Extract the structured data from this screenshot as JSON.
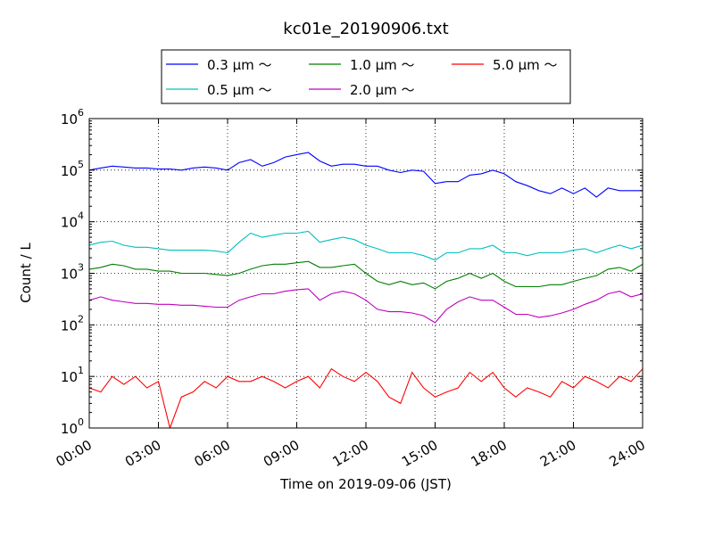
{
  "chart_data": {
    "type": "line",
    "title": "kc01e_20190906.txt",
    "xlabel": "Time on 2019-09-06 (JST)",
    "ylabel": "Count / L",
    "y_scale": "log",
    "ylim": [
      1,
      1000000
    ],
    "xlim": [
      "00:00",
      "24:00"
    ],
    "x_ticks": [
      "00:00",
      "03:00",
      "06:00",
      "09:00",
      "12:00",
      "15:00",
      "18:00",
      "21:00",
      "24:00"
    ],
    "y_ticks": [
      {
        "base": "10",
        "exp": "0",
        "value": 1
      },
      {
        "base": "10",
        "exp": "1",
        "value": 10
      },
      {
        "base": "10",
        "exp": "2",
        "value": 100
      },
      {
        "base": "10",
        "exp": "3",
        "value": 1000
      },
      {
        "base": "10",
        "exp": "4",
        "value": 10000
      },
      {
        "base": "10",
        "exp": "5",
        "value": 100000
      },
      {
        "base": "10",
        "exp": "6",
        "value": 1000000
      }
    ],
    "grid": true,
    "legend_position": "top-center",
    "x": [
      "00:00",
      "00:30",
      "01:00",
      "01:30",
      "02:00",
      "02:30",
      "03:00",
      "03:30",
      "04:00",
      "04:30",
      "05:00",
      "05:30",
      "06:00",
      "06:30",
      "07:00",
      "07:30",
      "08:00",
      "08:30",
      "09:00",
      "09:30",
      "10:00",
      "10:30",
      "11:00",
      "11:30",
      "12:00",
      "12:30",
      "13:00",
      "13:30",
      "14:00",
      "14:30",
      "15:00",
      "15:30",
      "16:00",
      "16:30",
      "17:00",
      "17:30",
      "18:00",
      "18:30",
      "19:00",
      "19:30",
      "20:00",
      "20:30",
      "21:00",
      "21:30",
      "22:00",
      "22:30",
      "23:00",
      "23:30",
      "24:00"
    ],
    "series": [
      {
        "name": "0.3 µm ～",
        "color": "#0000ff",
        "values": [
          100000,
          110000,
          120000,
          115000,
          110000,
          110000,
          105000,
          105000,
          100000,
          110000,
          115000,
          110000,
          100000,
          140000,
          160000,
          120000,
          140000,
          180000,
          200000,
          220000,
          150000,
          120000,
          130000,
          130000,
          120000,
          120000,
          100000,
          90000,
          100000,
          95000,
          55000,
          60000,
          60000,
          80000,
          85000,
          100000,
          85000,
          60000,
          50000,
          40000,
          35000,
          45000,
          35000,
          45000,
          30000,
          45000,
          40000,
          40000,
          40000
        ]
      },
      {
        "name": "0.5 µm ～",
        "color": "#00bfbf",
        "values": [
          3500,
          4000,
          4200,
          3500,
          3200,
          3200,
          3000,
          2800,
          2800,
          2800,
          2800,
          2700,
          2500,
          4000,
          6000,
          5000,
          5500,
          6000,
          6000,
          6500,
          4000,
          4500,
          5000,
          4500,
          3500,
          3000,
          2500,
          2500,
          2500,
          2200,
          1800,
          2500,
          2500,
          3000,
          3000,
          3500,
          2500,
          2500,
          2200,
          2500,
          2500,
          2500,
          2800,
          3000,
          2500,
          3000,
          3500,
          3000,
          3500
        ]
      },
      {
        "name": "1.0 µm ～",
        "color": "#007f00",
        "values": [
          1200,
          1300,
          1500,
          1400,
          1200,
          1200,
          1100,
          1100,
          1000,
          1000,
          1000,
          950,
          900,
          1000,
          1200,
          1400,
          1500,
          1500,
          1600,
          1700,
          1300,
          1300,
          1400,
          1500,
          1000,
          700,
          600,
          700,
          600,
          650,
          500,
          700,
          800,
          1000,
          800,
          1000,
          700,
          550,
          550,
          550,
          600,
          600,
          700,
          800,
          900,
          1200,
          1300,
          1100,
          1500
        ]
      },
      {
        "name": "2.0 µm ～",
        "color": "#bf00bf",
        "values": [
          300,
          350,
          300,
          280,
          260,
          260,
          250,
          250,
          240,
          240,
          230,
          220,
          220,
          300,
          350,
          400,
          400,
          450,
          480,
          500,
          300,
          400,
          450,
          400,
          300,
          200,
          180,
          180,
          170,
          150,
          110,
          200,
          280,
          350,
          300,
          300,
          220,
          160,
          160,
          140,
          150,
          170,
          200,
          250,
          300,
          400,
          450,
          350,
          400
        ]
      },
      {
        "name": "5.0 µm ～",
        "color": "#ff0000",
        "values": [
          6,
          5,
          10,
          7,
          10,
          6,
          8,
          1,
          4,
          5,
          8,
          6,
          10,
          8,
          8,
          10,
          8,
          6,
          8,
          10,
          6,
          14,
          10,
          8,
          12,
          8,
          4,
          3,
          12,
          6,
          4,
          5,
          6,
          12,
          8,
          12,
          6,
          4,
          6,
          5,
          4,
          8,
          6,
          10,
          8,
          6,
          10,
          8,
          14
        ]
      }
    ]
  }
}
